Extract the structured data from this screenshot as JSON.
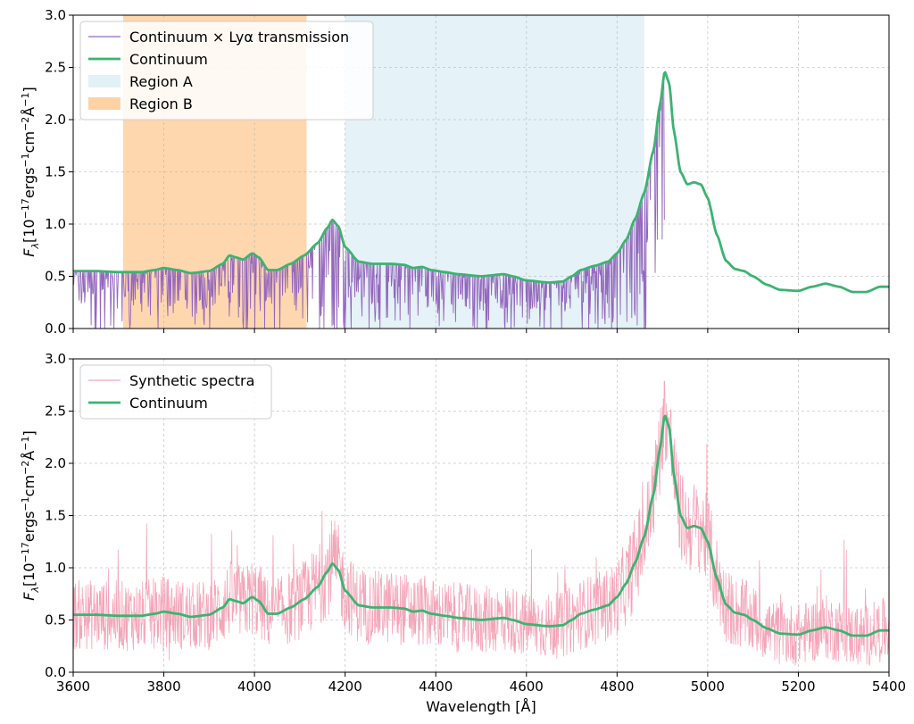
{
  "chart_data": [
    {
      "type": "line",
      "panel": "top",
      "xlabel": "",
      "ylabel": "F_λ [10^{-17} ergs^{-1} cm^{-2} Å^{-1}]",
      "xlim": [
        3600,
        5400
      ],
      "ylim": [
        0,
        3.0
      ],
      "xticks": [
        3600,
        3800,
        4000,
        4200,
        4400,
        4600,
        4800,
        5000,
        5200,
        5400
      ],
      "yticks": [
        "0.0",
        "0.5",
        "1.0",
        "1.5",
        "2.0",
        "2.5",
        "3.0"
      ],
      "grid": true,
      "legend_position": "upper-left",
      "regions": [
        {
          "name": "Region A",
          "x_start": 4200,
          "x_end": 4860,
          "color": "#add8e6"
        },
        {
          "name": "Region B",
          "x_start": 3710,
          "x_end": 4115,
          "color": "#ffa64d"
        }
      ],
      "series": [
        {
          "name": "Continuum × Lyα transmission",
          "color": "#9467bd",
          "style": "absorbed continuum, spiky absorption lines blueward of 4905 Å"
        },
        {
          "name": "Continuum",
          "color": "#3cb371",
          "x": [
            3600,
            3650,
            3700,
            3750,
            3780,
            3800,
            3830,
            3860,
            3900,
            3930,
            3945,
            3960,
            3975,
            3995,
            4010,
            4030,
            4050,
            4080,
            4110,
            4140,
            4160,
            4172,
            4185,
            4200,
            4230,
            4260,
            4300,
            4330,
            4350,
            4370,
            4390,
            4420,
            4450,
            4500,
            4550,
            4570,
            4600,
            4650,
            4680,
            4700,
            4720,
            4750,
            4780,
            4800,
            4820,
            4840,
            4860,
            4880,
            4895,
            4905,
            4915,
            4925,
            4940,
            4955,
            4970,
            4985,
            5000,
            5020,
            5040,
            5060,
            5080,
            5100,
            5130,
            5160,
            5200,
            5230,
            5260,
            5290,
            5320,
            5350,
            5380,
            5400
          ],
          "y": [
            0.55,
            0.55,
            0.54,
            0.54,
            0.56,
            0.58,
            0.56,
            0.53,
            0.55,
            0.62,
            0.7,
            0.68,
            0.66,
            0.72,
            0.68,
            0.56,
            0.56,
            0.62,
            0.7,
            0.82,
            0.96,
            1.04,
            0.98,
            0.78,
            0.64,
            0.62,
            0.62,
            0.61,
            0.58,
            0.59,
            0.56,
            0.54,
            0.52,
            0.5,
            0.52,
            0.5,
            0.46,
            0.44,
            0.45,
            0.5,
            0.56,
            0.6,
            0.64,
            0.72,
            0.85,
            1.05,
            1.3,
            1.7,
            2.15,
            2.46,
            2.35,
            1.9,
            1.5,
            1.38,
            1.4,
            1.38,
            1.25,
            0.9,
            0.65,
            0.57,
            0.55,
            0.5,
            0.42,
            0.37,
            0.36,
            0.4,
            0.43,
            0.4,
            0.35,
            0.35,
            0.4,
            0.4
          ]
        }
      ]
    },
    {
      "type": "line",
      "panel": "bottom",
      "xlabel": "Wavelength [Å]",
      "ylabel": "F_λ [10^{-17} ergs^{-1} cm^{-2} Å^{-1}]",
      "xlim": [
        3600,
        5400
      ],
      "ylim": [
        0,
        3.0
      ],
      "xticks": [
        3600,
        3800,
        4000,
        4200,
        4400,
        4600,
        4800,
        5000,
        5200,
        5400
      ],
      "yticks": [
        "0.0",
        "0.5",
        "1.0",
        "1.5",
        "2.0",
        "2.5",
        "3.0"
      ],
      "grid": true,
      "legend_position": "upper-left",
      "series": [
        {
          "name": "Synthetic spectra",
          "color": "#f4a6b8",
          "style": "noisy spectrum scattered around continuum"
        },
        {
          "name": "Continuum",
          "color": "#3cb371",
          "same_as_top": true
        }
      ]
    }
  ],
  "legends": {
    "top": [
      "Continuum × Lyα transmission",
      "Continuum",
      "Region A",
      "Region B"
    ],
    "bottom": [
      "Synthetic spectra",
      "Continuum"
    ]
  },
  "labels": {
    "ylabel_prefix": "F",
    "ylabel_sub": "λ",
    "ylabel_a": "[10",
    "ylabel_exp1": "−17",
    "ylabel_b": "ergs",
    "ylabel_exp2": "−1",
    "ylabel_c": "cm",
    "ylabel_exp3": "−2",
    "ylabel_d": "Å",
    "ylabel_exp4": "−1",
    "ylabel_e": "]",
    "xlabel": "Wavelength [Å]"
  }
}
